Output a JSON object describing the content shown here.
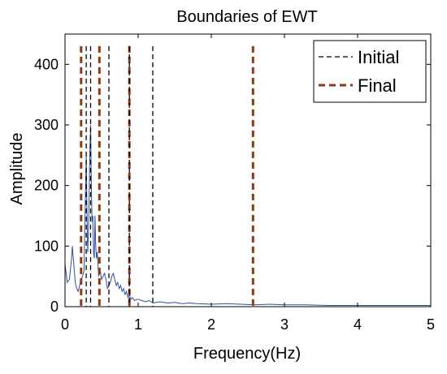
{
  "chart_data": {
    "type": "line",
    "title": "Boundaries of EWT",
    "xlabel": "Frequency(Hz)",
    "ylabel": "Amplitude",
    "xlim": [
      0,
      5
    ],
    "ylim": [
      0,
      450
    ],
    "xticks": [
      0,
      1,
      2,
      3,
      4,
      5
    ],
    "yticks": [
      0,
      100,
      200,
      300,
      400
    ],
    "grid": false,
    "legend_position": "top-right",
    "spectrum": {
      "color": "#2f4f9f",
      "x": [
        0.0,
        0.03,
        0.06,
        0.09,
        0.1,
        0.12,
        0.14,
        0.16,
        0.18,
        0.2,
        0.22,
        0.24,
        0.26,
        0.27,
        0.29,
        0.3,
        0.31,
        0.32,
        0.33,
        0.34,
        0.35,
        0.36,
        0.37,
        0.38,
        0.39,
        0.4,
        0.41,
        0.42,
        0.43,
        0.44,
        0.46,
        0.48,
        0.5,
        0.52,
        0.54,
        0.56,
        0.58,
        0.6,
        0.62,
        0.64,
        0.66,
        0.68,
        0.7,
        0.72,
        0.74,
        0.76,
        0.78,
        0.8,
        0.82,
        0.84,
        0.86,
        0.88,
        0.9,
        0.92,
        0.95,
        0.98,
        1.0,
        1.05,
        1.1,
        1.15,
        1.2,
        1.3,
        1.4,
        1.5,
        1.6,
        1.7,
        1.8,
        2.0,
        2.2,
        2.4,
        2.6,
        2.8,
        3.0,
        3.3,
        3.6,
        4.0,
        4.4,
        4.7,
        5.0
      ],
      "y": [
        70,
        40,
        45,
        80,
        100,
        70,
        40,
        30,
        25,
        35,
        45,
        50,
        60,
        130,
        250,
        160,
        90,
        120,
        180,
        260,
        300,
        200,
        140,
        150,
        90,
        80,
        150,
        100,
        80,
        90,
        50,
        60,
        45,
        50,
        55,
        45,
        30,
        35,
        40,
        50,
        55,
        45,
        35,
        40,
        30,
        35,
        25,
        30,
        20,
        25,
        15,
        20,
        12,
        15,
        10,
        12,
        12,
        10,
        8,
        10,
        6,
        8,
        6,
        7,
        5,
        6,
        5,
        4,
        5,
        4,
        3,
        4,
        3,
        3,
        2,
        2,
        2,
        2,
        2
      ]
    },
    "boundaries": [
      {
        "name": "Initial",
        "color": "#000000",
        "x": [
          0.29,
          0.35,
          0.6,
          0.88,
          1.2
        ]
      },
      {
        "name": "Final",
        "color": "#8b3a12",
        "x": [
          0.22,
          0.47,
          0.88,
          2.57
        ]
      }
    ]
  }
}
